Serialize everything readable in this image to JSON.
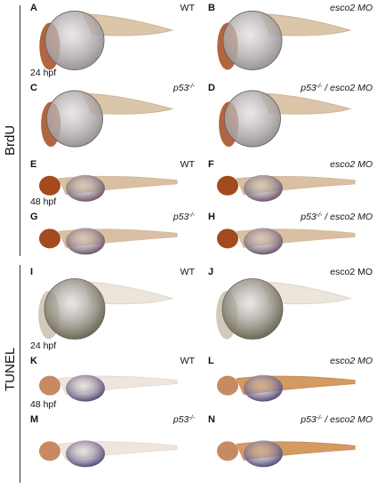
{
  "figure": {
    "sections": [
      {
        "label": "BrdU"
      },
      {
        "label": "TUNEL"
      }
    ],
    "panels": [
      {
        "letter": "A",
        "condition": "WT",
        "italic": false,
        "stage": "24 hpf",
        "staining": "brdu",
        "age": "24"
      },
      {
        "letter": "B",
        "condition": "esco2 MO",
        "italic": true,
        "stage": "",
        "staining": "brdu",
        "age": "24"
      },
      {
        "letter": "C",
        "condition": "p53 -/-",
        "italic": true,
        "stage": "",
        "staining": "brdu",
        "age": "24"
      },
      {
        "letter": "D",
        "condition": "p53 -/- / esco2 MO",
        "italic": true,
        "stage": "",
        "staining": "brdu",
        "age": "24"
      },
      {
        "letter": "E",
        "condition": "WT",
        "italic": false,
        "stage": "48 hpf",
        "staining": "brdu",
        "age": "48"
      },
      {
        "letter": "F",
        "condition": "esco2 MO",
        "italic": true,
        "stage": "",
        "staining": "brdu",
        "age": "48"
      },
      {
        "letter": "G",
        "condition": "p53 -/-",
        "italic": true,
        "stage": "",
        "staining": "brdu",
        "age": "48"
      },
      {
        "letter": "H",
        "condition": "p53 -/- / esco2 MO",
        "italic": true,
        "stage": "",
        "staining": "brdu",
        "age": "48"
      },
      {
        "letter": "I",
        "condition": "WT",
        "italic": false,
        "stage": "24 hpf",
        "staining": "tunel",
        "age": "24"
      },
      {
        "letter": "J",
        "condition": "esco2 MO",
        "italic": false,
        "stage": "",
        "staining": "tunel",
        "age": "24"
      },
      {
        "letter": "K",
        "condition": "WT",
        "italic": false,
        "stage": "48 hpf",
        "staining": "tunel",
        "age": "48"
      },
      {
        "letter": "L",
        "condition": "esco2 MO",
        "italic": true,
        "stage": "",
        "staining": "tunel",
        "age": "48"
      },
      {
        "letter": "M",
        "condition": "p53 -/-",
        "italic": true,
        "stage": "",
        "staining": "tunel",
        "age": "48"
      },
      {
        "letter": "N",
        "condition": "p53 -/- / esco2 MO",
        "italic": true,
        "stage": "",
        "staining": "tunel",
        "age": "48"
      }
    ]
  }
}
